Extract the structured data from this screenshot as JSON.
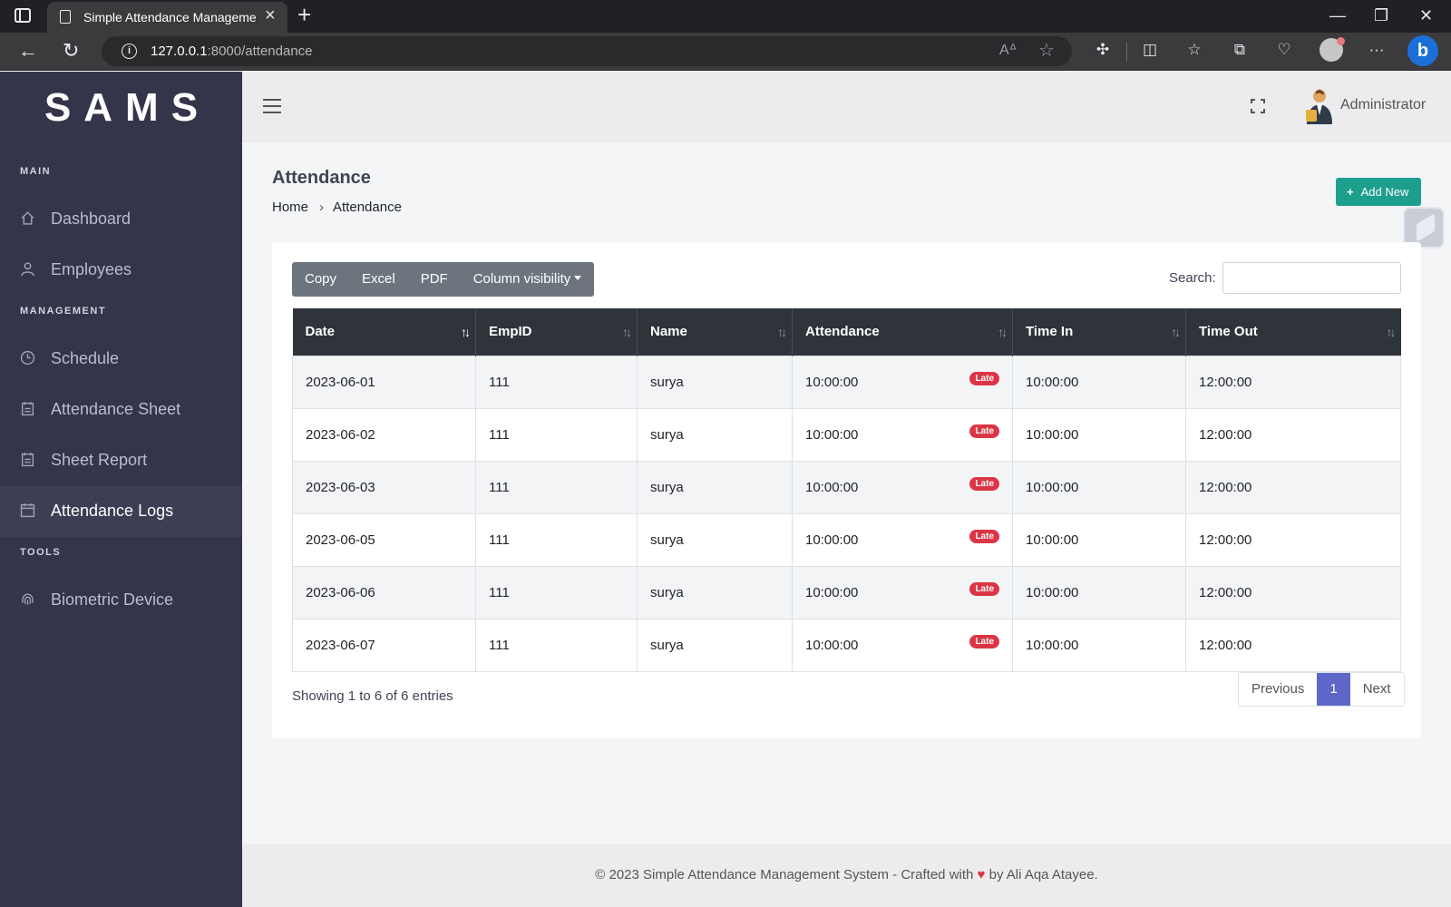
{
  "browser": {
    "tab_title": "Simple Attendance Management",
    "tab_close": "×",
    "new_tab": "+",
    "url_host": "127.0.0.1",
    "url_rest": ":8000/attendance",
    "window": {
      "minimize": "—",
      "restore": "❐",
      "close": "✕"
    },
    "nav": {
      "back": "←",
      "reload": "↻"
    },
    "toolbar_more": "···"
  },
  "sidebar": {
    "brand": "SAMS",
    "sections": [
      {
        "title": "MAIN",
        "items": [
          {
            "label": "Dashboard",
            "icon": "home-icon"
          },
          {
            "label": "Employees",
            "icon": "user-icon"
          }
        ]
      },
      {
        "title": "MANAGEMENT",
        "items": [
          {
            "label": "Schedule",
            "icon": "clock-icon"
          },
          {
            "label": "Attendance Sheet",
            "icon": "clipboard-icon"
          },
          {
            "label": "Sheet Report",
            "icon": "clipboard-icon"
          },
          {
            "label": "Attendance Logs",
            "icon": "calendar-icon",
            "active": true
          }
        ]
      },
      {
        "title": "TOOLS",
        "items": [
          {
            "label": "Biometric Device",
            "icon": "fingerprint-icon"
          }
        ]
      }
    ]
  },
  "topbar": {
    "user_name": "Administrator"
  },
  "page": {
    "title": "Attendance",
    "breadcrumb": {
      "home": "Home",
      "current": "Attendance"
    },
    "add_new_label": "Add New"
  },
  "table_tools": {
    "buttons": [
      "Copy",
      "Excel",
      "PDF",
      "Column visibility"
    ],
    "search_label": "Search:",
    "search_value": ""
  },
  "table": {
    "columns": [
      "Date",
      "EmpID",
      "Name",
      "Attendance",
      "Time In",
      "Time Out"
    ],
    "rows": [
      {
        "date": "2023-06-01",
        "emp_id": "111",
        "name": "surya",
        "attendance": "10:00:00",
        "badge": "Late",
        "time_in": "10:00:00",
        "time_out": "12:00:00"
      },
      {
        "date": "2023-06-02",
        "emp_id": "111",
        "name": "surya",
        "attendance": "10:00:00",
        "badge": "Late",
        "time_in": "10:00:00",
        "time_out": "12:00:00"
      },
      {
        "date": "2023-06-03",
        "emp_id": "111",
        "name": "surya",
        "attendance": "10:00:00",
        "badge": "Late",
        "time_in": "10:00:00",
        "time_out": "12:00:00"
      },
      {
        "date": "2023-06-05",
        "emp_id": "111",
        "name": "surya",
        "attendance": "10:00:00",
        "badge": "Late",
        "time_in": "10:00:00",
        "time_out": "12:00:00"
      },
      {
        "date": "2023-06-06",
        "emp_id": "111",
        "name": "surya",
        "attendance": "10:00:00",
        "badge": "Late",
        "time_in": "10:00:00",
        "time_out": "12:00:00"
      },
      {
        "date": "2023-06-07",
        "emp_id": "111",
        "name": "surya",
        "attendance": "10:00:00",
        "badge": "Late",
        "time_in": "10:00:00",
        "time_out": "12:00:00"
      }
    ],
    "info_prefix": "Showing ",
    "info_from": "1",
    "info_mid1": " to ",
    "info_to": "6",
    "info_mid2": " of ",
    "info_total": "6",
    "info_suffix": " entries",
    "pagination": {
      "previous": "Previous",
      "current_page": "1",
      "next": "Next"
    }
  },
  "footer": {
    "text_before": "© 2023 Simple Attendance Management System - Crafted with ",
    "heart": "♥",
    "text_after": " by Ali Aqa Atayee."
  },
  "colors": {
    "sidebar_bg": "#34344a",
    "accent_teal": "#1e9e8d",
    "badge_red": "#dc3545",
    "pager_active": "#5d68c9"
  }
}
